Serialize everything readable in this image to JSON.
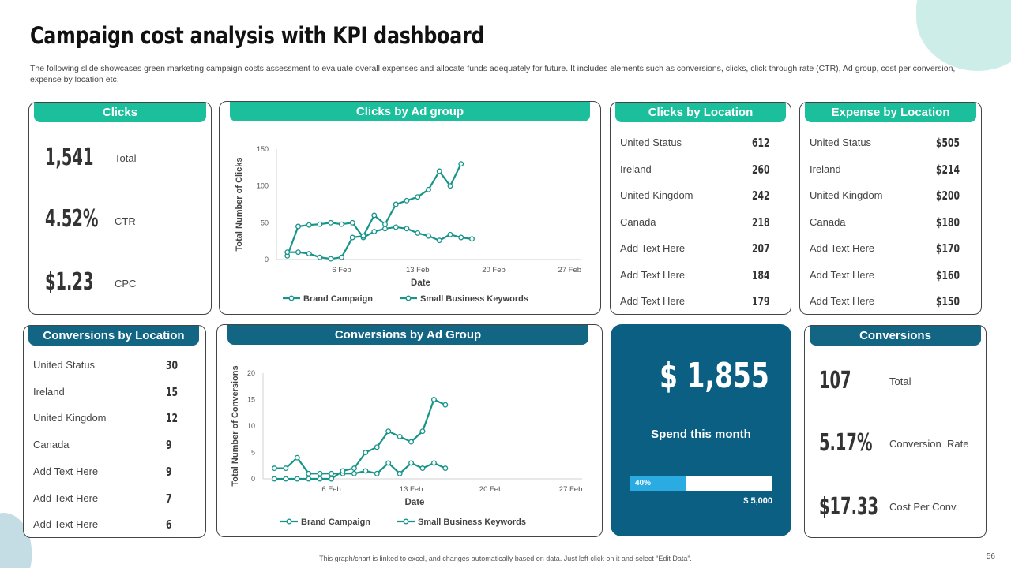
{
  "title": "Campaign cost analysis with KPI dashboard",
  "subtitle": "The following slide showcases green marketing campaign costs assessment to evaluate overall expenses and allocate funds adequately for future. It includes elements such as conversions, clicks, click through rate (CTR), Ad group, cost per conversion, expense by location etc.",
  "colors": {
    "teal": "#1bbf9c",
    "navy": "#136584",
    "series": "#17948a",
    "spend_bg": "#0b5f82",
    "progress": "#2aace2"
  },
  "clicks": {
    "title": "Clicks",
    "kpis": [
      {
        "value": "1,541",
        "label": "Total"
      },
      {
        "value": "4.52%",
        "label": "CTR"
      },
      {
        "value": "$1.23",
        "label": "CPC"
      }
    ]
  },
  "clicks_location": {
    "title": "Clicks by Location",
    "rows": [
      {
        "label": "United Status",
        "value": "612"
      },
      {
        "label": "Ireland",
        "value": "260"
      },
      {
        "label": "United Kingdom",
        "value": "242"
      },
      {
        "label": "Canada",
        "value": "218"
      },
      {
        "label": "Add Text Here",
        "value": "207"
      },
      {
        "label": "Add Text Here",
        "value": "184"
      },
      {
        "label": "Add Text Here",
        "value": "179"
      }
    ]
  },
  "expense_location": {
    "title": "Expense by Location",
    "rows": [
      {
        "label": "United Status",
        "value": "$505"
      },
      {
        "label": "Ireland",
        "value": "$214"
      },
      {
        "label": "United Kingdom",
        "value": "$200"
      },
      {
        "label": "Canada",
        "value": "$180"
      },
      {
        "label": "Add Text Here",
        "value": "$170"
      },
      {
        "label": "Add Text Here",
        "value": "$160"
      },
      {
        "label": "Add Text Here",
        "value": "$150"
      }
    ]
  },
  "conversions_location": {
    "title": "Conversions by Location",
    "rows": [
      {
        "label": "United Status",
        "value": "30"
      },
      {
        "label": "Ireland",
        "value": "15"
      },
      {
        "label": "United Kingdom",
        "value": "12"
      },
      {
        "label": "Canada",
        "value": "9"
      },
      {
        "label": "Add Text Here",
        "value": "9"
      },
      {
        "label": "Add Text Here",
        "value": "7"
      },
      {
        "label": "Add Text Here",
        "value": "6"
      }
    ]
  },
  "spend": {
    "value": "$ 1,855",
    "label": "Spend this month",
    "progress_label": "40%",
    "progress": 40,
    "budget": "$ 5,000"
  },
  "conversions": {
    "title": "Conversions",
    "kpis": [
      {
        "value": "107",
        "label": "Total"
      },
      {
        "value": "5.17%",
        "label": "Conversion  Rate"
      },
      {
        "value": "$17.33",
        "label": "Cost Per Conv."
      }
    ]
  },
  "chart_data": [
    {
      "type": "line",
      "title": "Clicks by Ad group",
      "xlabel": "Date",
      "ylabel": "Total Number of Clicks",
      "ylim": [
        0,
        150
      ],
      "yticks": [
        0,
        50,
        100,
        150
      ],
      "xlim": [
        0,
        28
      ],
      "xticks": [
        {
          "day": 6,
          "label": "6 Feb"
        },
        {
          "day": 13,
          "label": "13 Feb"
        },
        {
          "day": 20,
          "label": "20 Feb"
        },
        {
          "day": 27,
          "label": "27 Feb"
        }
      ],
      "x": [
        1,
        2,
        3,
        4,
        5,
        6,
        7,
        8,
        9,
        10,
        11,
        12,
        13,
        14,
        15,
        16,
        17,
        18
      ],
      "series": [
        {
          "name": "Brand Campaign",
          "values": [
            5,
            45,
            47,
            48,
            50,
            48,
            50,
            30,
            38,
            42,
            44,
            42,
            36,
            32,
            26,
            34,
            30,
            28
          ]
        },
        {
          "name": "Small Business Keywords",
          "values": [
            10,
            10,
            8,
            3,
            1,
            3,
            30,
            32,
            60,
            48,
            75,
            80,
            85,
            95,
            120,
            100,
            130,
            null
          ]
        }
      ],
      "legend": "bottom"
    },
    {
      "type": "line",
      "title": "Conversions by Ad Group",
      "xlabel": "Date",
      "ylabel": "Total Number of Conversions",
      "ylim": [
        0,
        20
      ],
      "yticks": [
        0,
        5,
        10,
        15,
        20
      ],
      "xlim": [
        0,
        28
      ],
      "xticks": [
        {
          "day": 6,
          "label": "6 Feb"
        },
        {
          "day": 13,
          "label": "13 Feb"
        },
        {
          "day": 20,
          "label": "20 Feb"
        },
        {
          "day": 27,
          "label": "27 Feb"
        }
      ],
      "x": [
        1,
        2,
        3,
        4,
        5,
        6,
        7,
        8,
        9,
        10,
        11,
        12,
        13,
        14,
        15,
        16,
        17,
        18
      ],
      "series": [
        {
          "name": "Brand Campaign",
          "values": [
            2,
            2,
            4,
            1,
            1,
            1,
            1,
            1,
            1.5,
            1,
            3,
            1,
            3,
            2,
            3,
            2,
            null,
            null
          ]
        },
        {
          "name": "Small Business Keywords",
          "values": [
            0,
            0,
            0,
            0,
            0,
            0,
            1.5,
            2,
            5,
            6,
            9,
            8,
            7,
            9,
            15,
            14,
            null,
            null
          ]
        }
      ],
      "legend": "bottom"
    }
  ],
  "footer": "This graph/chart is linked to excel, and changes automatically based on data. Just left click on it and select “Edit Data”.",
  "page_number": "56"
}
